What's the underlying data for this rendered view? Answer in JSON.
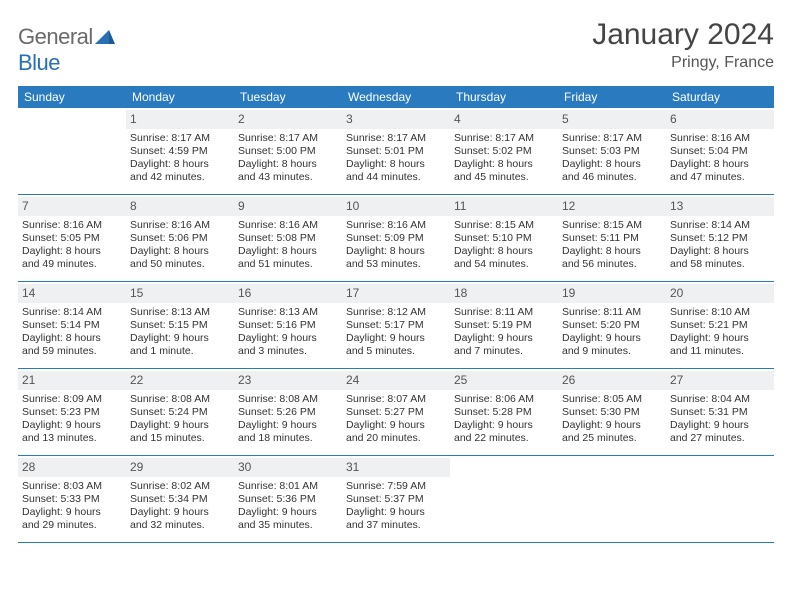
{
  "brand": {
    "part1": "General",
    "part2": "Blue"
  },
  "title": "January 2024",
  "location": "Pringy, France",
  "colors": {
    "header_bg": "#2a7ac0",
    "rule": "#2a7ac0",
    "daynum_bg": "#eef0f1",
    "text": "#333333"
  },
  "dow": [
    "Sunday",
    "Monday",
    "Tuesday",
    "Wednesday",
    "Thursday",
    "Friday",
    "Saturday"
  ],
  "weeks": [
    [
      null,
      {
        "n": "1",
        "sr": "Sunrise: 8:17 AM",
        "ss": "Sunset: 4:59 PM",
        "d1": "Daylight: 8 hours",
        "d2": "and 42 minutes."
      },
      {
        "n": "2",
        "sr": "Sunrise: 8:17 AM",
        "ss": "Sunset: 5:00 PM",
        "d1": "Daylight: 8 hours",
        "d2": "and 43 minutes."
      },
      {
        "n": "3",
        "sr": "Sunrise: 8:17 AM",
        "ss": "Sunset: 5:01 PM",
        "d1": "Daylight: 8 hours",
        "d2": "and 44 minutes."
      },
      {
        "n": "4",
        "sr": "Sunrise: 8:17 AM",
        "ss": "Sunset: 5:02 PM",
        "d1": "Daylight: 8 hours",
        "d2": "and 45 minutes."
      },
      {
        "n": "5",
        "sr": "Sunrise: 8:17 AM",
        "ss": "Sunset: 5:03 PM",
        "d1": "Daylight: 8 hours",
        "d2": "and 46 minutes."
      },
      {
        "n": "6",
        "sr": "Sunrise: 8:16 AM",
        "ss": "Sunset: 5:04 PM",
        "d1": "Daylight: 8 hours",
        "d2": "and 47 minutes."
      }
    ],
    [
      {
        "n": "7",
        "sr": "Sunrise: 8:16 AM",
        "ss": "Sunset: 5:05 PM",
        "d1": "Daylight: 8 hours",
        "d2": "and 49 minutes."
      },
      {
        "n": "8",
        "sr": "Sunrise: 8:16 AM",
        "ss": "Sunset: 5:06 PM",
        "d1": "Daylight: 8 hours",
        "d2": "and 50 minutes."
      },
      {
        "n": "9",
        "sr": "Sunrise: 8:16 AM",
        "ss": "Sunset: 5:08 PM",
        "d1": "Daylight: 8 hours",
        "d2": "and 51 minutes."
      },
      {
        "n": "10",
        "sr": "Sunrise: 8:16 AM",
        "ss": "Sunset: 5:09 PM",
        "d1": "Daylight: 8 hours",
        "d2": "and 53 minutes."
      },
      {
        "n": "11",
        "sr": "Sunrise: 8:15 AM",
        "ss": "Sunset: 5:10 PM",
        "d1": "Daylight: 8 hours",
        "d2": "and 54 minutes."
      },
      {
        "n": "12",
        "sr": "Sunrise: 8:15 AM",
        "ss": "Sunset: 5:11 PM",
        "d1": "Daylight: 8 hours",
        "d2": "and 56 minutes."
      },
      {
        "n": "13",
        "sr": "Sunrise: 8:14 AM",
        "ss": "Sunset: 5:12 PM",
        "d1": "Daylight: 8 hours",
        "d2": "and 58 minutes."
      }
    ],
    [
      {
        "n": "14",
        "sr": "Sunrise: 8:14 AM",
        "ss": "Sunset: 5:14 PM",
        "d1": "Daylight: 8 hours",
        "d2": "and 59 minutes."
      },
      {
        "n": "15",
        "sr": "Sunrise: 8:13 AM",
        "ss": "Sunset: 5:15 PM",
        "d1": "Daylight: 9 hours",
        "d2": "and 1 minute."
      },
      {
        "n": "16",
        "sr": "Sunrise: 8:13 AM",
        "ss": "Sunset: 5:16 PM",
        "d1": "Daylight: 9 hours",
        "d2": "and 3 minutes."
      },
      {
        "n": "17",
        "sr": "Sunrise: 8:12 AM",
        "ss": "Sunset: 5:17 PM",
        "d1": "Daylight: 9 hours",
        "d2": "and 5 minutes."
      },
      {
        "n": "18",
        "sr": "Sunrise: 8:11 AM",
        "ss": "Sunset: 5:19 PM",
        "d1": "Daylight: 9 hours",
        "d2": "and 7 minutes."
      },
      {
        "n": "19",
        "sr": "Sunrise: 8:11 AM",
        "ss": "Sunset: 5:20 PM",
        "d1": "Daylight: 9 hours",
        "d2": "and 9 minutes."
      },
      {
        "n": "20",
        "sr": "Sunrise: 8:10 AM",
        "ss": "Sunset: 5:21 PM",
        "d1": "Daylight: 9 hours",
        "d2": "and 11 minutes."
      }
    ],
    [
      {
        "n": "21",
        "sr": "Sunrise: 8:09 AM",
        "ss": "Sunset: 5:23 PM",
        "d1": "Daylight: 9 hours",
        "d2": "and 13 minutes."
      },
      {
        "n": "22",
        "sr": "Sunrise: 8:08 AM",
        "ss": "Sunset: 5:24 PM",
        "d1": "Daylight: 9 hours",
        "d2": "and 15 minutes."
      },
      {
        "n": "23",
        "sr": "Sunrise: 8:08 AM",
        "ss": "Sunset: 5:26 PM",
        "d1": "Daylight: 9 hours",
        "d2": "and 18 minutes."
      },
      {
        "n": "24",
        "sr": "Sunrise: 8:07 AM",
        "ss": "Sunset: 5:27 PM",
        "d1": "Daylight: 9 hours",
        "d2": "and 20 minutes."
      },
      {
        "n": "25",
        "sr": "Sunrise: 8:06 AM",
        "ss": "Sunset: 5:28 PM",
        "d1": "Daylight: 9 hours",
        "d2": "and 22 minutes."
      },
      {
        "n": "26",
        "sr": "Sunrise: 8:05 AM",
        "ss": "Sunset: 5:30 PM",
        "d1": "Daylight: 9 hours",
        "d2": "and 25 minutes."
      },
      {
        "n": "27",
        "sr": "Sunrise: 8:04 AM",
        "ss": "Sunset: 5:31 PM",
        "d1": "Daylight: 9 hours",
        "d2": "and 27 minutes."
      }
    ],
    [
      {
        "n": "28",
        "sr": "Sunrise: 8:03 AM",
        "ss": "Sunset: 5:33 PM",
        "d1": "Daylight: 9 hours",
        "d2": "and 29 minutes."
      },
      {
        "n": "29",
        "sr": "Sunrise: 8:02 AM",
        "ss": "Sunset: 5:34 PM",
        "d1": "Daylight: 9 hours",
        "d2": "and 32 minutes."
      },
      {
        "n": "30",
        "sr": "Sunrise: 8:01 AM",
        "ss": "Sunset: 5:36 PM",
        "d1": "Daylight: 9 hours",
        "d2": "and 35 minutes."
      },
      {
        "n": "31",
        "sr": "Sunrise: 7:59 AM",
        "ss": "Sunset: 5:37 PM",
        "d1": "Daylight: 9 hours",
        "d2": "and 37 minutes."
      },
      null,
      null,
      null
    ]
  ]
}
